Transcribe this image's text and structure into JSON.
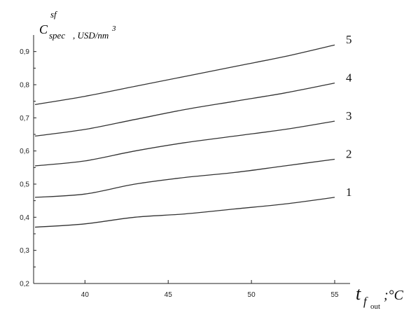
{
  "chart_data": {
    "type": "line",
    "y_title": {
      "symbol": "C",
      "sup": "sf",
      "sub": "spec",
      "unit": ", USD/nm",
      "unit_sup": "3"
    },
    "x_title": {
      "symbol": "t",
      "sub": "f",
      "subsub": "out",
      "unit": ";°C"
    },
    "xlim": [
      37,
      55
    ],
    "ylim": [
      0.2,
      0.95
    ],
    "x_ticks": [
      {
        "value": 40,
        "label": "40"
      },
      {
        "value": 45,
        "label": "45"
      },
      {
        "value": 50,
        "label": "50"
      },
      {
        "value": 55,
        "label": "55"
      }
    ],
    "y_ticks": [
      {
        "value": 0.2,
        "label": "0,2"
      },
      {
        "value": 0.3,
        "label": "0,3"
      },
      {
        "value": 0.4,
        "label": "0,4"
      },
      {
        "value": 0.5,
        "label": "0,5"
      },
      {
        "value": 0.6,
        "label": "0,6"
      },
      {
        "value": 0.7,
        "label": "0,7"
      },
      {
        "value": 0.8,
        "label": "0,8"
      },
      {
        "value": 0.9,
        "label": "0,9"
      }
    ],
    "x": [
      37,
      40,
      43,
      46,
      49,
      52,
      55
    ],
    "series": [
      {
        "name": "1",
        "values": [
          0.37,
          0.38,
          0.4,
          0.41,
          0.425,
          0.44,
          0.46
        ]
      },
      {
        "name": "2",
        "values": [
          0.46,
          0.47,
          0.5,
          0.52,
          0.535,
          0.555,
          0.575
        ]
      },
      {
        "name": "3",
        "values": [
          0.555,
          0.57,
          0.6,
          0.625,
          0.645,
          0.665,
          0.69
        ]
      },
      {
        "name": "4",
        "values": [
          0.645,
          0.665,
          0.695,
          0.725,
          0.75,
          0.775,
          0.805
        ]
      },
      {
        "name": "5",
        "values": [
          0.74,
          0.765,
          0.795,
          0.825,
          0.855,
          0.885,
          0.92
        ]
      }
    ],
    "grid": false,
    "legend": "inline-labels-right"
  }
}
